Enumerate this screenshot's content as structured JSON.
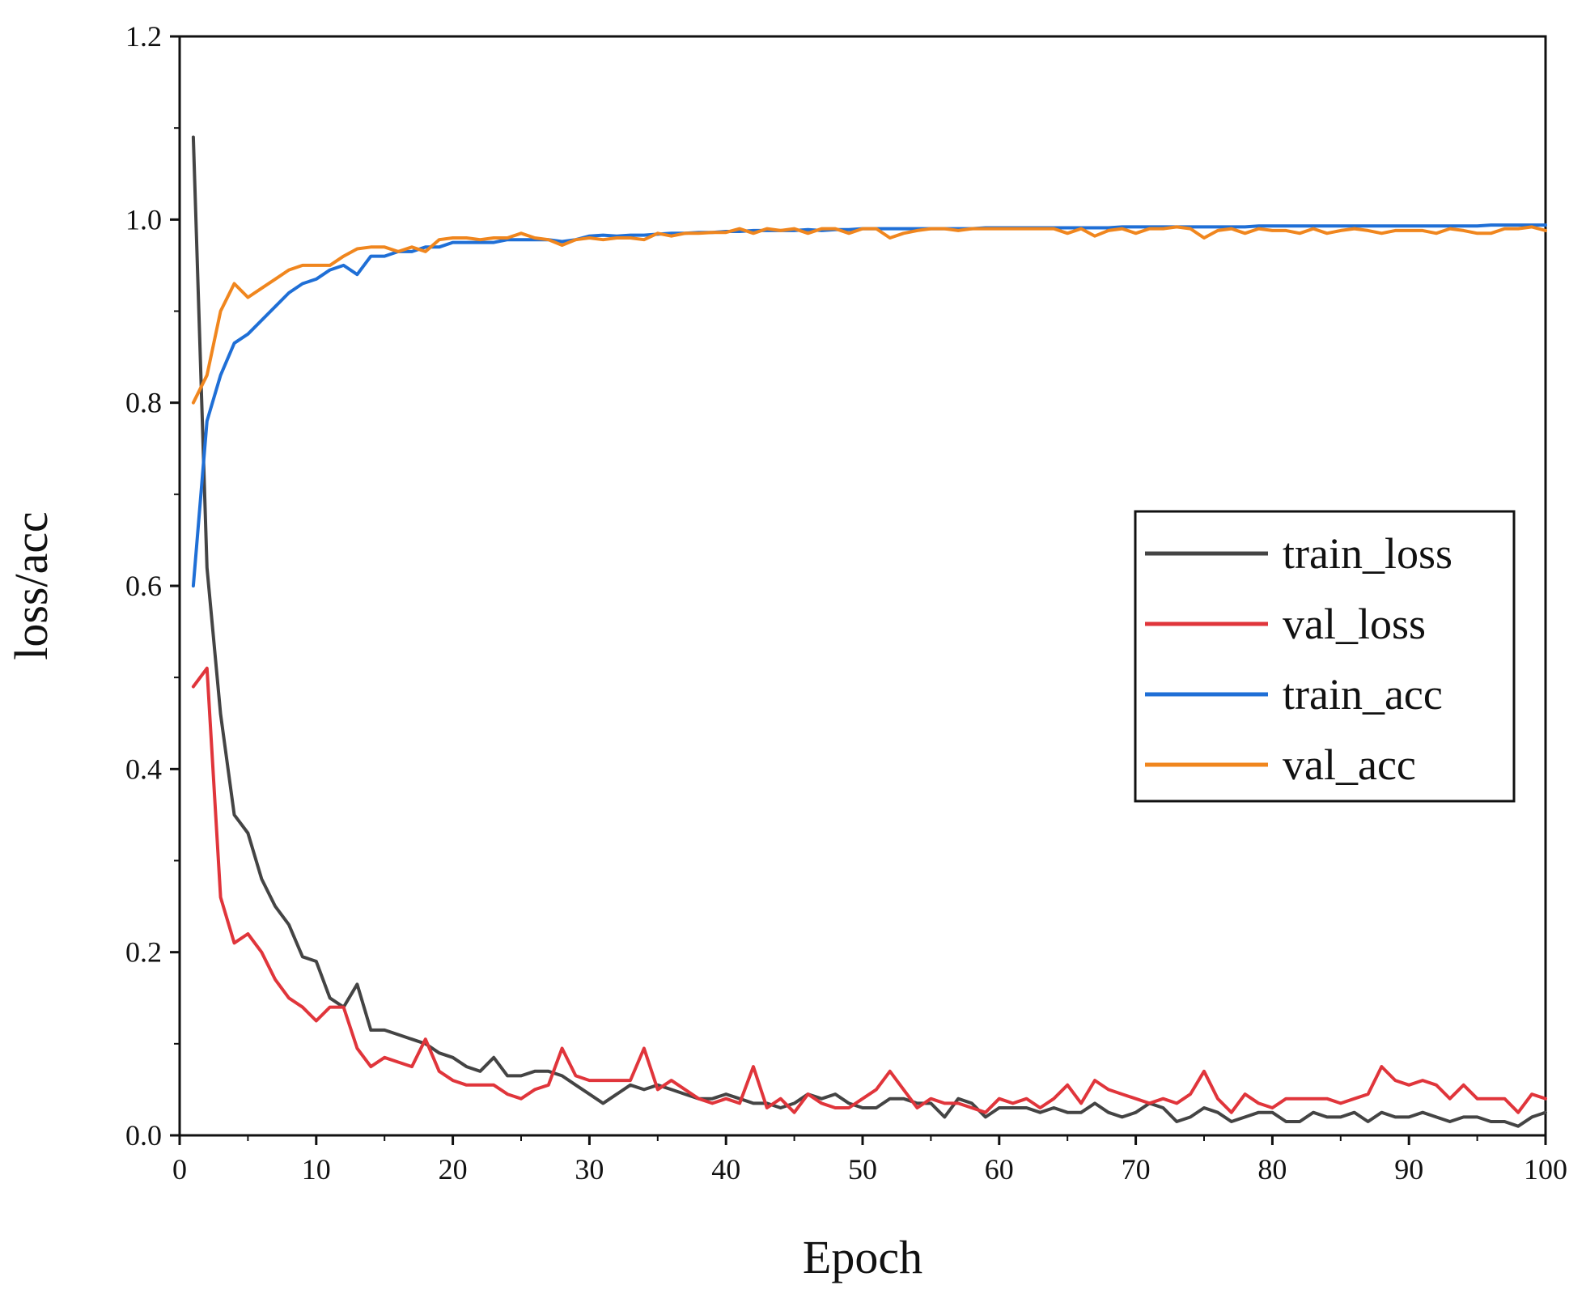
{
  "chart_data": {
    "type": "line",
    "title": "",
    "xlabel": "Epoch",
    "ylabel": "loss/acc",
    "xlim": [
      0,
      100
    ],
    "ylim": [
      0.0,
      1.2
    ],
    "xticks": [
      0,
      10,
      20,
      30,
      40,
      50,
      60,
      70,
      80,
      90,
      100
    ],
    "xtick_labels": [
      "0",
      "10",
      "20",
      "30",
      "40",
      "50",
      "60",
      "70",
      "80",
      "90",
      "100"
    ],
    "yticks": [
      0.0,
      0.2,
      0.4,
      0.6,
      0.8,
      1.0,
      1.2
    ],
    "ytick_labels": [
      "0.0",
      "0.2",
      "0.4",
      "0.6",
      "0.8",
      "1.0",
      "1.2"
    ],
    "grid": false,
    "legend_position": "center-right",
    "series": [
      {
        "name": "train_loss",
        "color": "#444444",
        "x": [
          1,
          2,
          3,
          4,
          5,
          6,
          7,
          8,
          9,
          10,
          11,
          12,
          13,
          14,
          15,
          16,
          17,
          18,
          19,
          20,
          21,
          22,
          23,
          24,
          25,
          26,
          27,
          28,
          29,
          30,
          31,
          32,
          33,
          34,
          35,
          36,
          37,
          38,
          39,
          40,
          41,
          42,
          43,
          44,
          45,
          46,
          47,
          48,
          49,
          50,
          51,
          52,
          53,
          54,
          55,
          56,
          57,
          58,
          59,
          60,
          61,
          62,
          63,
          64,
          65,
          66,
          67,
          68,
          69,
          70,
          71,
          72,
          73,
          74,
          75,
          76,
          77,
          78,
          79,
          80,
          81,
          82,
          83,
          84,
          85,
          86,
          87,
          88,
          89,
          90,
          91,
          92,
          93,
          94,
          95,
          96,
          97,
          98,
          99,
          100
        ],
        "values": [
          1.09,
          0.62,
          0.46,
          0.35,
          0.33,
          0.28,
          0.25,
          0.23,
          0.195,
          0.19,
          0.15,
          0.14,
          0.165,
          0.115,
          0.115,
          0.11,
          0.105,
          0.1,
          0.09,
          0.085,
          0.075,
          0.07,
          0.085,
          0.065,
          0.065,
          0.07,
          0.07,
          0.065,
          0.055,
          0.045,
          0.035,
          0.045,
          0.055,
          0.05,
          0.055,
          0.05,
          0.045,
          0.04,
          0.04,
          0.045,
          0.04,
          0.035,
          0.035,
          0.03,
          0.035,
          0.045,
          0.04,
          0.045,
          0.035,
          0.03,
          0.03,
          0.04,
          0.04,
          0.035,
          0.035,
          0.02,
          0.04,
          0.035,
          0.02,
          0.03,
          0.03,
          0.03,
          0.025,
          0.03,
          0.025,
          0.025,
          0.035,
          0.025,
          0.02,
          0.025,
          0.035,
          0.03,
          0.015,
          0.02,
          0.03,
          0.025,
          0.015,
          0.02,
          0.025,
          0.025,
          0.015,
          0.015,
          0.025,
          0.02,
          0.02,
          0.025,
          0.015,
          0.025,
          0.02,
          0.02,
          0.025,
          0.02,
          0.015,
          0.02,
          0.02,
          0.015,
          0.015,
          0.01,
          0.02,
          0.025
        ]
      },
      {
        "name": "val_loss",
        "color": "#e0353b",
        "x": [
          1,
          2,
          3,
          4,
          5,
          6,
          7,
          8,
          9,
          10,
          11,
          12,
          13,
          14,
          15,
          16,
          17,
          18,
          19,
          20,
          21,
          22,
          23,
          24,
          25,
          26,
          27,
          28,
          29,
          30,
          31,
          32,
          33,
          34,
          35,
          36,
          37,
          38,
          39,
          40,
          41,
          42,
          43,
          44,
          45,
          46,
          47,
          48,
          49,
          50,
          51,
          52,
          53,
          54,
          55,
          56,
          57,
          58,
          59,
          60,
          61,
          62,
          63,
          64,
          65,
          66,
          67,
          68,
          69,
          70,
          71,
          72,
          73,
          74,
          75,
          76,
          77,
          78,
          79,
          80,
          81,
          82,
          83,
          84,
          85,
          86,
          87,
          88,
          89,
          90,
          91,
          92,
          93,
          94,
          95,
          96,
          97,
          98,
          99,
          100
        ],
        "values": [
          0.49,
          0.51,
          0.26,
          0.21,
          0.22,
          0.2,
          0.17,
          0.15,
          0.14,
          0.125,
          0.14,
          0.14,
          0.095,
          0.075,
          0.085,
          0.08,
          0.075,
          0.105,
          0.07,
          0.06,
          0.055,
          0.055,
          0.055,
          0.045,
          0.04,
          0.05,
          0.055,
          0.095,
          0.065,
          0.06,
          0.06,
          0.06,
          0.06,
          0.095,
          0.05,
          0.06,
          0.05,
          0.04,
          0.035,
          0.04,
          0.035,
          0.075,
          0.03,
          0.04,
          0.025,
          0.045,
          0.035,
          0.03,
          0.03,
          0.04,
          0.05,
          0.07,
          0.05,
          0.03,
          0.04,
          0.035,
          0.035,
          0.03,
          0.025,
          0.04,
          0.035,
          0.04,
          0.03,
          0.04,
          0.055,
          0.035,
          0.06,
          0.05,
          0.045,
          0.04,
          0.035,
          0.04,
          0.035,
          0.045,
          0.07,
          0.04,
          0.025,
          0.045,
          0.035,
          0.03,
          0.04,
          0.04,
          0.04,
          0.04,
          0.035,
          0.04,
          0.045,
          0.075,
          0.06,
          0.055,
          0.06,
          0.055,
          0.04,
          0.055,
          0.04,
          0.04,
          0.04,
          0.025,
          0.045,
          0.04
        ]
      },
      {
        "name": "train_acc",
        "color": "#1f6fd6",
        "x": [
          1,
          2,
          3,
          4,
          5,
          6,
          7,
          8,
          9,
          10,
          11,
          12,
          13,
          14,
          15,
          16,
          17,
          18,
          19,
          20,
          21,
          22,
          23,
          24,
          25,
          26,
          27,
          28,
          29,
          30,
          31,
          32,
          33,
          34,
          35,
          36,
          37,
          38,
          39,
          40,
          41,
          42,
          43,
          44,
          45,
          46,
          47,
          48,
          49,
          50,
          51,
          52,
          53,
          54,
          55,
          56,
          57,
          58,
          59,
          60,
          61,
          62,
          63,
          64,
          65,
          66,
          67,
          68,
          69,
          70,
          71,
          72,
          73,
          74,
          75,
          76,
          77,
          78,
          79,
          80,
          81,
          82,
          83,
          84,
          85,
          86,
          87,
          88,
          89,
          90,
          91,
          92,
          93,
          94,
          95,
          96,
          97,
          98,
          99,
          100
        ],
        "values": [
          0.6,
          0.78,
          0.83,
          0.865,
          0.875,
          0.89,
          0.905,
          0.92,
          0.93,
          0.935,
          0.945,
          0.95,
          0.94,
          0.96,
          0.96,
          0.965,
          0.965,
          0.97,
          0.97,
          0.975,
          0.975,
          0.975,
          0.975,
          0.978,
          0.978,
          0.978,
          0.978,
          0.976,
          0.978,
          0.982,
          0.983,
          0.982,
          0.983,
          0.983,
          0.984,
          0.985,
          0.985,
          0.986,
          0.986,
          0.987,
          0.987,
          0.988,
          0.988,
          0.988,
          0.988,
          0.989,
          0.988,
          0.989,
          0.989,
          0.99,
          0.99,
          0.99,
          0.99,
          0.99,
          0.99,
          0.99,
          0.99,
          0.99,
          0.991,
          0.991,
          0.991,
          0.991,
          0.991,
          0.991,
          0.991,
          0.991,
          0.991,
          0.991,
          0.992,
          0.992,
          0.992,
          0.992,
          0.992,
          0.992,
          0.992,
          0.992,
          0.992,
          0.992,
          0.993,
          0.993,
          0.993,
          0.993,
          0.993,
          0.993,
          0.993,
          0.993,
          0.993,
          0.993,
          0.993,
          0.993,
          0.993,
          0.993,
          0.993,
          0.993,
          0.993,
          0.994,
          0.994,
          0.994,
          0.994,
          0.994
        ]
      },
      {
        "name": "val_acc",
        "color": "#f0861e",
        "x": [
          1,
          2,
          3,
          4,
          5,
          6,
          7,
          8,
          9,
          10,
          11,
          12,
          13,
          14,
          15,
          16,
          17,
          18,
          19,
          20,
          21,
          22,
          23,
          24,
          25,
          26,
          27,
          28,
          29,
          30,
          31,
          32,
          33,
          34,
          35,
          36,
          37,
          38,
          39,
          40,
          41,
          42,
          43,
          44,
          45,
          46,
          47,
          48,
          49,
          50,
          51,
          52,
          53,
          54,
          55,
          56,
          57,
          58,
          59,
          60,
          61,
          62,
          63,
          64,
          65,
          66,
          67,
          68,
          69,
          70,
          71,
          72,
          73,
          74,
          75,
          76,
          77,
          78,
          79,
          80,
          81,
          82,
          83,
          84,
          85,
          86,
          87,
          88,
          89,
          90,
          91,
          92,
          93,
          94,
          95,
          96,
          97,
          98,
          99,
          100
        ],
        "values": [
          0.8,
          0.83,
          0.9,
          0.93,
          0.915,
          0.925,
          0.935,
          0.945,
          0.95,
          0.95,
          0.95,
          0.96,
          0.968,
          0.97,
          0.97,
          0.965,
          0.97,
          0.965,
          0.978,
          0.98,
          0.98,
          0.978,
          0.98,
          0.98,
          0.985,
          0.98,
          0.978,
          0.972,
          0.978,
          0.98,
          0.978,
          0.98,
          0.98,
          0.978,
          0.985,
          0.982,
          0.985,
          0.985,
          0.986,
          0.986,
          0.99,
          0.985,
          0.99,
          0.988,
          0.99,
          0.985,
          0.99,
          0.99,
          0.985,
          0.99,
          0.99,
          0.98,
          0.985,
          0.988,
          0.99,
          0.99,
          0.988,
          0.99,
          0.99,
          0.99,
          0.99,
          0.99,
          0.99,
          0.99,
          0.985,
          0.99,
          0.982,
          0.988,
          0.99,
          0.985,
          0.99,
          0.99,
          0.992,
          0.99,
          0.98,
          0.988,
          0.99,
          0.985,
          0.99,
          0.988,
          0.988,
          0.985,
          0.99,
          0.985,
          0.988,
          0.99,
          0.988,
          0.985,
          0.988,
          0.988,
          0.988,
          0.985,
          0.99,
          0.988,
          0.985,
          0.985,
          0.99,
          0.99,
          0.992,
          0.988
        ]
      }
    ]
  }
}
